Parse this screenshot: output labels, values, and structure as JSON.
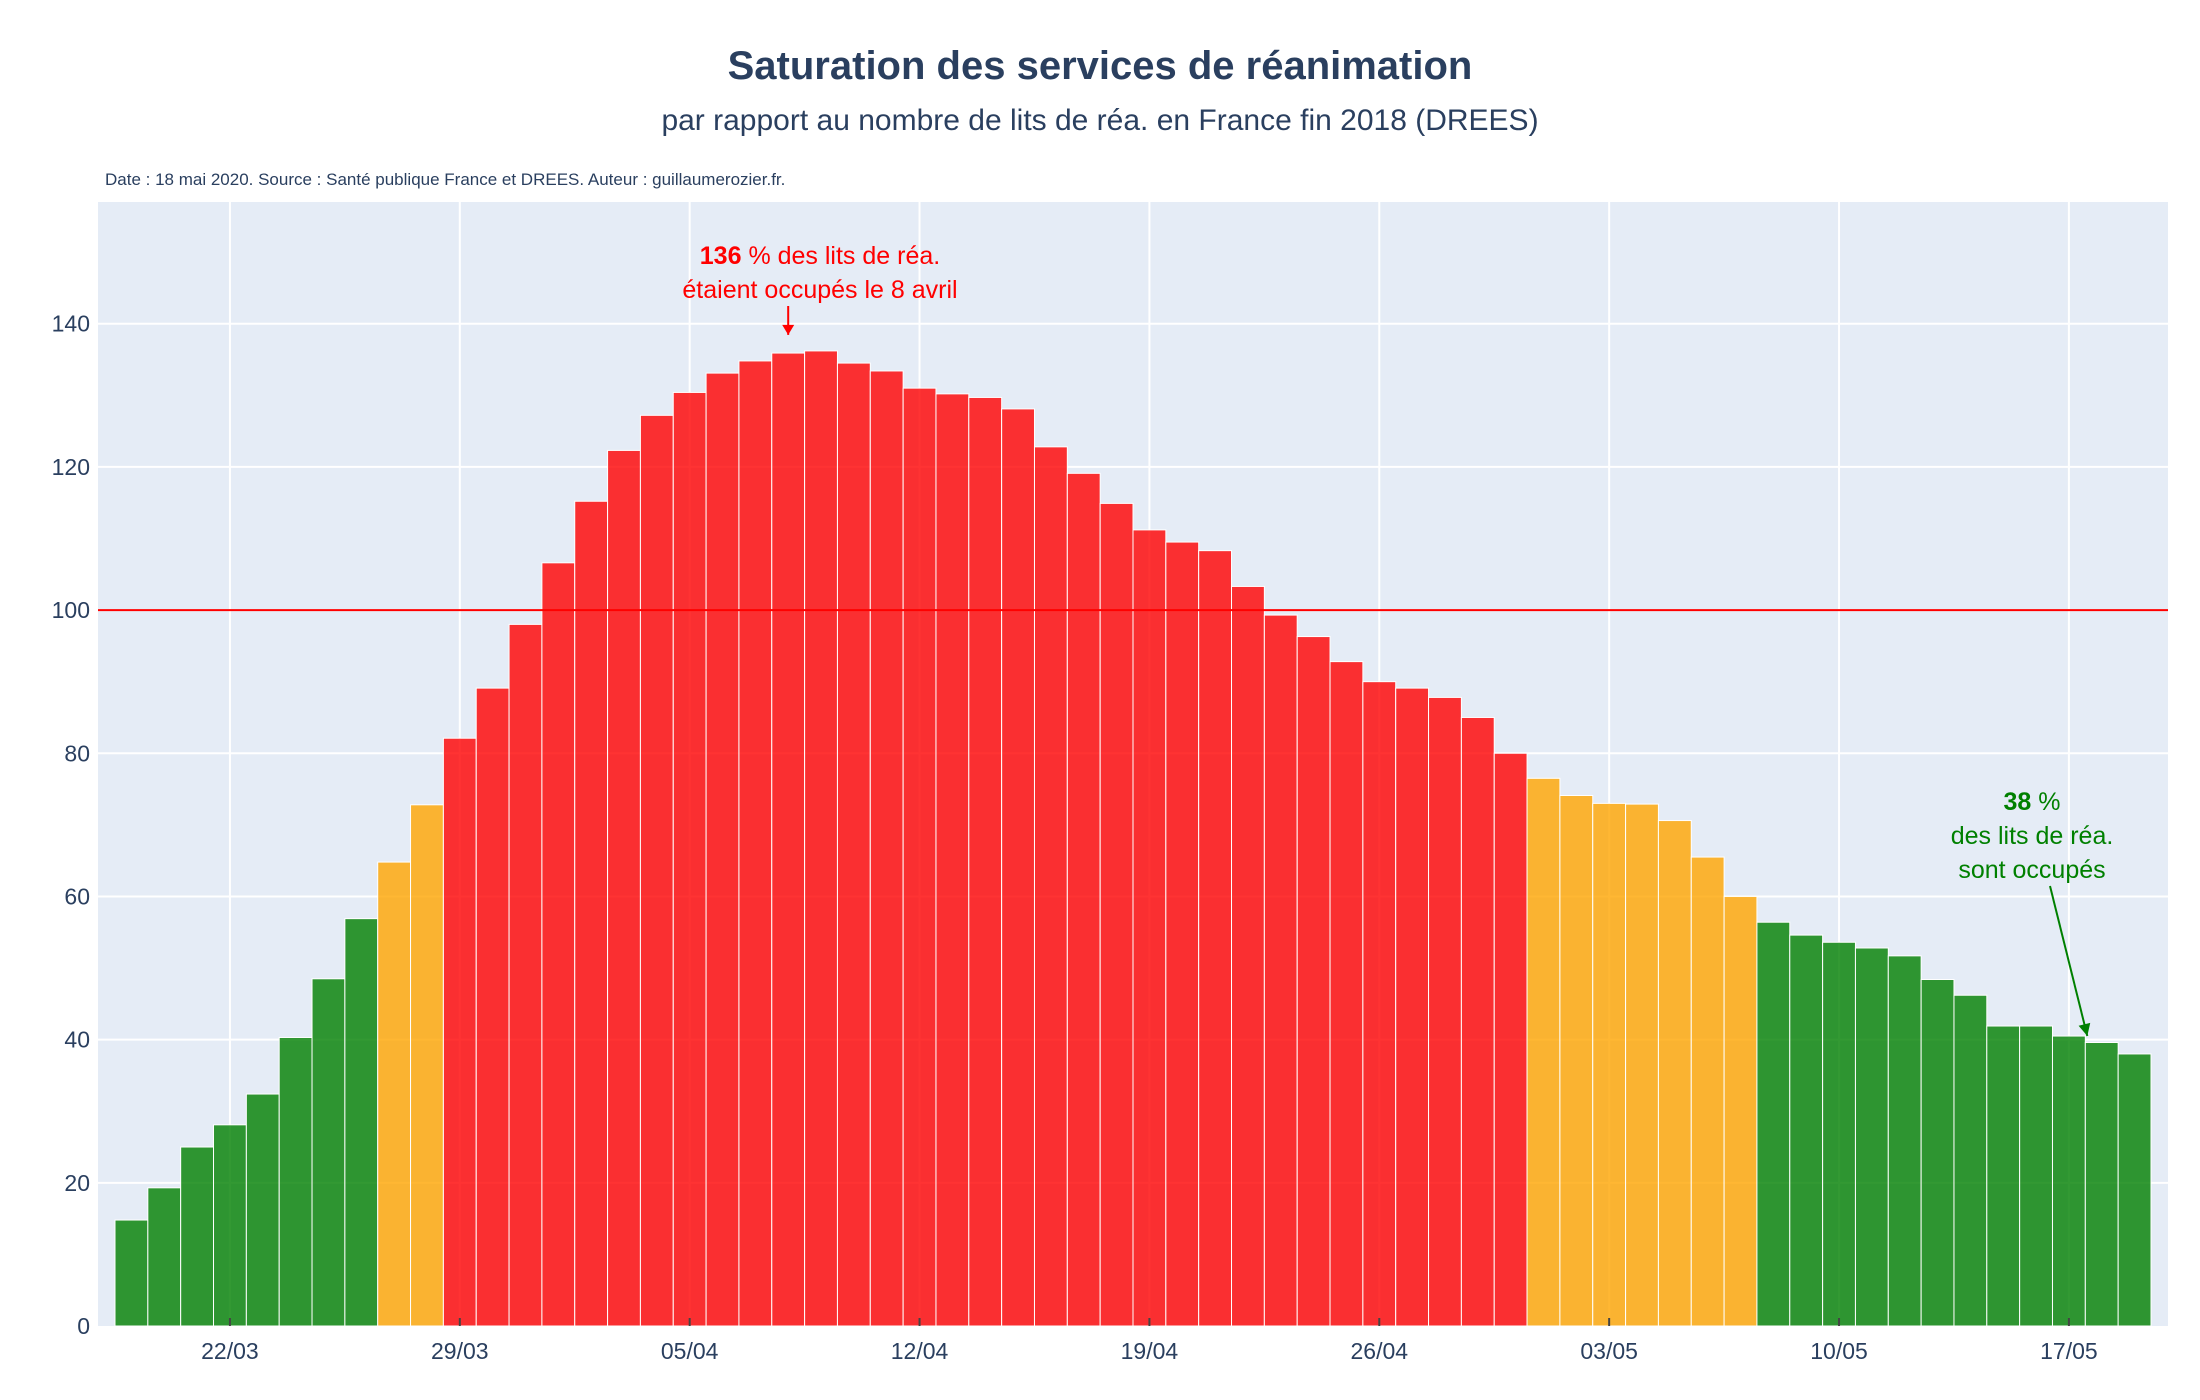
{
  "chart_data": {
    "type": "bar",
    "title": "Saturation des services de réanimation",
    "subtitle": "par rapport au nombre de lits de réa. en France fin 2018 (DREES)",
    "source_note": "Date : 18 mai 2020. Source : Santé publique France et DREES. Auteur : guillaumerozier.fr.",
    "x_start": "2020-03-19",
    "x_end": "2020-05-17",
    "x_tick_labels": [
      "22/03",
      "29/03",
      "05/04",
      "12/04",
      "19/04",
      "26/04",
      "03/05",
      "10/05",
      "17/05"
    ],
    "x_tick_dates": [
      "2020-03-22",
      "2020-03-29",
      "2020-04-05",
      "2020-04-12",
      "2020-04-19",
      "2020-04-26",
      "2020-05-03",
      "2020-05-10",
      "2020-05-17"
    ],
    "ylim": [
      0,
      157
    ],
    "y_ticks": [
      0,
      20,
      40,
      60,
      80,
      100,
      120,
      140
    ],
    "threshold": 100,
    "values": [
      14.8,
      19.3,
      25.0,
      28.1,
      32.4,
      40.3,
      48.5,
      56.9,
      64.8,
      72.8,
      82.1,
      89.1,
      98.0,
      106.6,
      115.2,
      122.3,
      127.2,
      130.4,
      133.1,
      134.8,
      135.9,
      136.2,
      134.5,
      133.4,
      131.0,
      130.2,
      129.7,
      128.1,
      122.8,
      119.1,
      114.9,
      111.2,
      109.5,
      108.3,
      103.3,
      99.3,
      96.3,
      92.8,
      90.0,
      89.1,
      87.8,
      85.0,
      80.0,
      76.5,
      74.1,
      73.0,
      72.9,
      70.6,
      65.5,
      60.0,
      56.4,
      54.6,
      53.6,
      52.8,
      51.7,
      48.4,
      46.2,
      41.9,
      41.9,
      40.5,
      39.6,
      38.0
    ],
    "colors": {
      "green": "#008000",
      "orange": "#ffa500",
      "red": "#ff0000",
      "threshold_line": "#ff0000",
      "plot_bg": "#e5ecf6"
    },
    "annotations": {
      "peak": {
        "value": "136",
        "text": " % des lits de réa.",
        "line2": "étaient occupés le 8 avril",
        "date": "2020-04-08"
      },
      "last": {
        "value": "38",
        "text": " %",
        "line2": "des lits de réa.",
        "line3": "sont occupés",
        "date": "2020-05-18"
      }
    }
  }
}
